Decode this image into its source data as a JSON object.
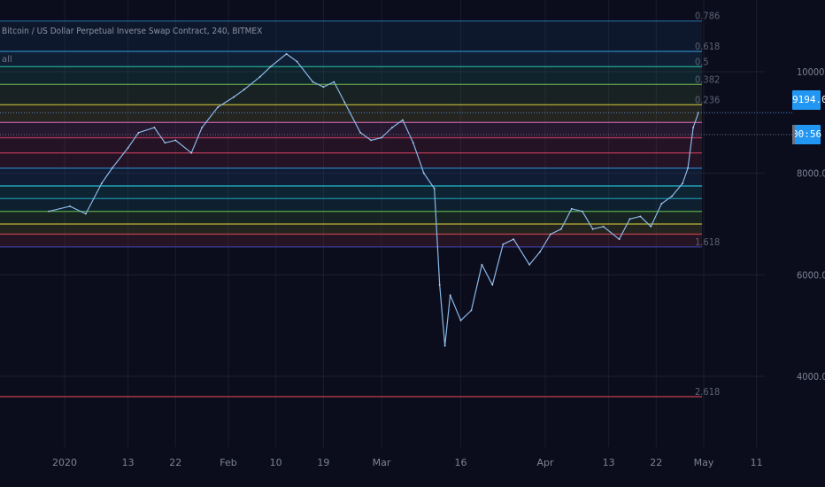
{
  "header": {
    "title": "Bitcoin / US Dollar Perpetual Inverse Swap Contract, 240, BITMEX",
    "sub": "all"
  },
  "price_badges": [
    {
      "label": "9194.0"
    },
    {
      "label": "00:56"
    }
  ],
  "chart_data": {
    "type": "line",
    "title": "Bitcoin / US Dollar Perpetual Inverse Swap Contract, 240, BITMEX",
    "ylim": [
      3000,
      11000
    ],
    "y_ticks": [
      4000,
      6000,
      8000,
      10000
    ],
    "y_tick_labels": [
      "4000.0",
      "6000.0",
      "8000.0",
      "10000.0"
    ],
    "x_tick_labels": [
      "2020",
      "13",
      "22",
      "Feb",
      "10",
      "19",
      "Mar",
      "16",
      "Apr",
      "13",
      "22",
      "May",
      "11"
    ],
    "grid": true,
    "last_price": 9194.0,
    "series": [
      {
        "x": [
          "2019-12-29",
          "2020-01-02",
          "2020-01-05",
          "2020-01-08",
          "2020-01-10",
          "2020-01-13",
          "2020-01-15",
          "2020-01-18",
          "2020-01-20",
          "2020-01-22",
          "2020-01-25",
          "2020-01-27",
          "2020-01-30",
          "2020-02-02",
          "2020-02-04",
          "2020-02-07",
          "2020-02-09",
          "2020-02-12",
          "2020-02-14",
          "2020-02-17",
          "2020-02-19",
          "2020-02-21",
          "2020-02-23",
          "2020-02-26",
          "2020-02-28",
          "2020-03-01",
          "2020-03-03",
          "2020-03-05",
          "2020-03-07",
          "2020-03-09",
          "2020-03-11",
          "2020-03-12",
          "2020-03-13",
          "2020-03-14",
          "2020-03-16",
          "2020-03-18",
          "2020-03-20",
          "2020-03-22",
          "2020-03-24",
          "2020-03-26",
          "2020-03-29",
          "2020-03-31",
          "2020-04-02",
          "2020-04-04",
          "2020-04-06",
          "2020-04-08",
          "2020-04-10",
          "2020-04-12",
          "2020-04-15",
          "2020-04-17",
          "2020-04-19",
          "2020-04-21",
          "2020-04-23",
          "2020-04-25",
          "2020-04-27",
          "2020-04-28",
          "2020-04-29",
          "2020-04-30"
        ],
        "values": [
          7250,
          7350,
          7200,
          7800,
          8100,
          8500,
          8800,
          8900,
          8600,
          8650,
          8400,
          8900,
          9300,
          9500,
          9650,
          9900,
          10100,
          10350,
          10200,
          9800,
          9700,
          9800,
          9400,
          8800,
          8650,
          8700,
          8900,
          9050,
          8600,
          8000,
          7700,
          5800,
          4600,
          5600,
          5100,
          5300,
          6200,
          5800,
          6600,
          6700,
          6200,
          6450,
          6800,
          6900,
          7300,
          7250,
          6900,
          6950,
          6700,
          7100,
          7150,
          6950,
          7400,
          7550,
          7800,
          8100,
          8900,
          9194
        ]
      }
    ],
    "fib_levels": [
      {
        "ratio": "0.786",
        "price": 11000,
        "color": "#1f5f8f"
      },
      {
        "ratio": "0.618",
        "price": 10400,
        "color": "#2a85c0"
      },
      {
        "ratio": "0.5",
        "price": 10100,
        "color": "#22a898"
      },
      {
        "ratio": "0.382",
        "price": 9750,
        "color": "#64a04a"
      },
      {
        "ratio": "0.236",
        "price": 9350,
        "color": "#b9b03a"
      },
      {
        "ratio": "",
        "price": 9000,
        "color": "#c25fa5"
      },
      {
        "ratio": "",
        "price": 8700,
        "color": "#b83b5a"
      },
      {
        "ratio": "",
        "price": 8400,
        "color": "#b83b5a"
      },
      {
        "ratio": "",
        "price": 8100,
        "color": "#2a7bbd"
      },
      {
        "ratio": "",
        "price": 7750,
        "color": "#22b0c0"
      },
      {
        "ratio": "",
        "price": 7500,
        "color": "#1b8ea6"
      },
      {
        "ratio": "",
        "price": 7250,
        "color": "#58a84a"
      },
      {
        "ratio": "",
        "price": 7000,
        "color": "#b4ab38"
      },
      {
        "ratio": "",
        "price": 6800,
        "color": "#c0404f"
      },
      {
        "ratio": "1.618",
        "price": 6550,
        "color": "#3b3f99"
      },
      {
        "ratio": "2.618",
        "price": 3600,
        "color": "#c0404f"
      }
    ]
  }
}
